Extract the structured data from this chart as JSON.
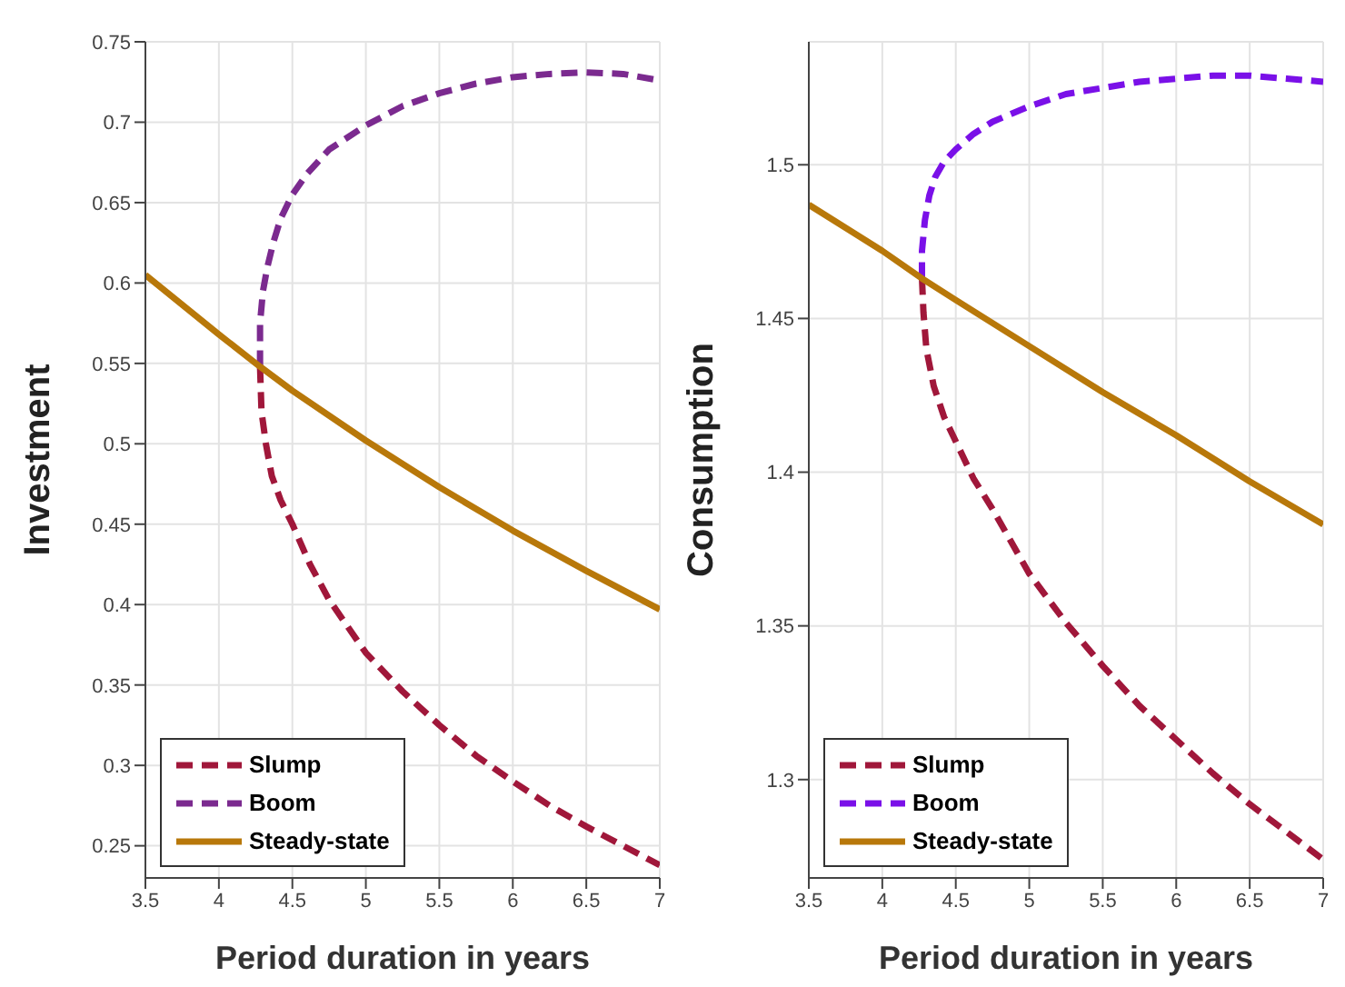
{
  "chart_data": [
    {
      "type": "line",
      "xlabel": "Period duration in years",
      "ylabel": "Investment",
      "xlim": [
        3.5,
        7
      ],
      "xticks": [
        3.5,
        4,
        4.5,
        5,
        5.5,
        6,
        6.5,
        7
      ],
      "ylim": [
        0.23,
        0.75
      ],
      "yticks": [
        0.25,
        0.3,
        0.35,
        0.4,
        0.45,
        0.5,
        0.55,
        0.6,
        0.65,
        0.7,
        0.75
      ],
      "grid": true,
      "legend": "bottom left",
      "marker": "none",
      "series": [
        {
          "name": "Slump",
          "color": "#a0173a",
          "line_style": "dashed",
          "x": [
            4.28,
            4.29,
            4.32,
            4.36,
            4.42,
            4.5,
            4.62,
            4.75,
            5,
            5.25,
            5.5,
            5.75,
            6,
            6.25,
            6.5,
            6.75,
            7
          ],
          "values": [
            0.548,
            0.52,
            0.5,
            0.48,
            0.465,
            0.45,
            0.425,
            0.403,
            0.37,
            0.346,
            0.325,
            0.306,
            0.29,
            0.275,
            0.262,
            0.25,
            0.238
          ]
        },
        {
          "name": "Boom",
          "color": "#7b2a8f",
          "line_style": "dashed",
          "x": [
            4.28,
            4.28,
            4.3,
            4.33,
            4.37,
            4.42,
            4.5,
            4.6,
            4.75,
            5,
            5.25,
            5.5,
            5.75,
            6,
            6.25,
            6.5,
            6.75,
            7
          ],
          "values": [
            0.548,
            0.575,
            0.595,
            0.61,
            0.625,
            0.64,
            0.655,
            0.668,
            0.683,
            0.698,
            0.71,
            0.718,
            0.724,
            0.728,
            0.73,
            0.731,
            0.73,
            0.726
          ]
        },
        {
          "name": "Steady-state",
          "color": "#b8780a",
          "line_style": "solid",
          "x": [
            3.5,
            4,
            4.28,
            4.5,
            5,
            5.5,
            6,
            6.5,
            7
          ],
          "values": [
            0.605,
            0.568,
            0.548,
            0.533,
            0.502,
            0.473,
            0.446,
            0.421,
            0.397
          ]
        }
      ]
    },
    {
      "type": "line",
      "xlabel": "Period duration in years",
      "ylabel": "Consumption",
      "xlim": [
        3.5,
        7
      ],
      "xticks": [
        3.5,
        4,
        4.5,
        5,
        5.5,
        6,
        6.5,
        7
      ],
      "ylim": [
        1.268,
        1.54
      ],
      "yticks": [
        1.3,
        1.35,
        1.4,
        1.45,
        1.5
      ],
      "grid": true,
      "legend": "bottom left",
      "marker": "none",
      "series": [
        {
          "name": "Slump",
          "color": "#a0173a",
          "line_style": "dashed",
          "x": [
            4.27,
            4.28,
            4.3,
            4.35,
            4.42,
            4.5,
            4.62,
            4.75,
            5,
            5.25,
            5.5,
            5.75,
            6,
            6.25,
            6.5,
            6.75,
            7
          ],
          "values": [
            1.463,
            1.452,
            1.44,
            1.428,
            1.418,
            1.41,
            1.398,
            1.388,
            1.367,
            1.351,
            1.337,
            1.324,
            1.313,
            1.302,
            1.292,
            1.283,
            1.274
          ]
        },
        {
          "name": "Boom",
          "color": "#7a10e8",
          "line_style": "dashed",
          "x": [
            4.27,
            4.27,
            4.29,
            4.32,
            4.36,
            4.42,
            4.5,
            4.62,
            4.75,
            5,
            5.25,
            5.5,
            5.75,
            6,
            6.25,
            6.5,
            6.75,
            7
          ],
          "values": [
            1.463,
            1.472,
            1.482,
            1.49,
            1.496,
            1.501,
            1.505,
            1.51,
            1.514,
            1.519,
            1.523,
            1.525,
            1.527,
            1.528,
            1.529,
            1.529,
            1.528,
            1.527
          ]
        },
        {
          "name": "Steady-state",
          "color": "#b8780a",
          "line_style": "solid",
          "x": [
            3.5,
            4,
            4.27,
            4.5,
            5,
            5.5,
            6,
            6.5,
            7
          ],
          "values": [
            1.487,
            1.472,
            1.463,
            1.456,
            1.441,
            1.426,
            1.412,
            1.397,
            1.383
          ]
        }
      ]
    }
  ]
}
